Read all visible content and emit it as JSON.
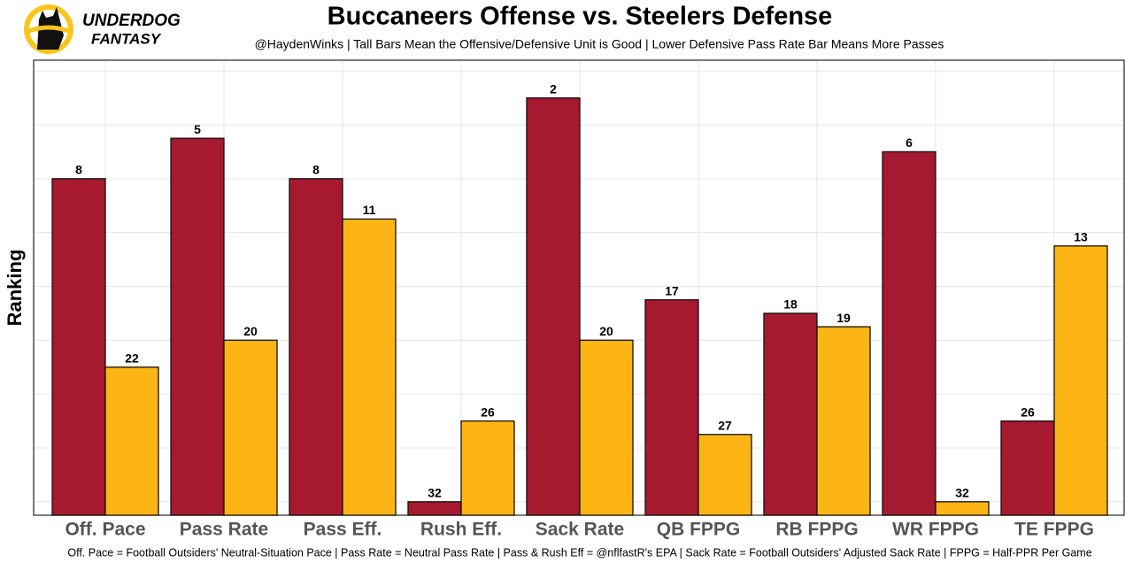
{
  "brand": {
    "line1": "UNDERDOG",
    "line2": "FANTASY"
  },
  "chart_data": {
    "type": "bar",
    "title": "Buccaneers Offense vs. Steelers Defense",
    "subtitle": "@HaydenWinks | Tall Bars Mean the Offensive/Defensive Unit is Good | Lower Defensive Pass Rate Bar Means More Passes",
    "caption": "Off. Pace = Football Outsiders' Neutral-Situation Pace | Pass Rate = Neutral Pass Rate | Pass & Rush Eff = @nflfastR's EPA | Sack Rate = Football Outsiders' Adjusted Sack Rate | FPPG = Half-PPR Per Game",
    "ylabel": "Ranking",
    "categories": [
      "Off. Pace",
      "Pass Rate",
      "Pass Eff.",
      "Rush Eff.",
      "Sack Rate",
      "QB FPPG",
      "RB FPPG",
      "WR FPPG",
      "TE FPPG"
    ],
    "series": [
      {
        "color": "#a6192e",
        "values": [
          8,
          5,
          8,
          32,
          2,
          17,
          18,
          6,
          26
        ]
      },
      {
        "color": "#fdb515",
        "values": [
          22,
          20,
          11,
          26,
          20,
          27,
          19,
          32,
          13
        ]
      }
    ],
    "ylim": [
      33,
      -0.8
    ],
    "yticks": [
      32,
      28,
      24,
      20,
      16,
      12,
      8,
      4,
      0
    ],
    "grid": true
  }
}
